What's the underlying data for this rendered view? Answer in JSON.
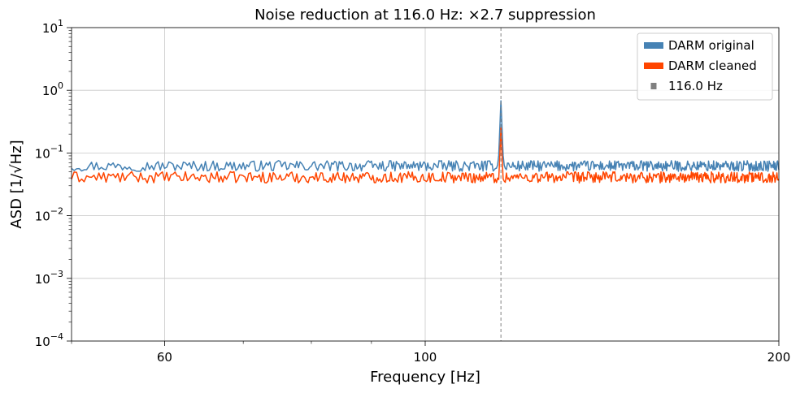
{
  "chart_data": {
    "type": "line",
    "title": "Noise reduction at 116.0 Hz: ×2.7 suppression",
    "xlabel": "Frequency [Hz]",
    "ylabel": "ASD [1/√Hz]",
    "xscale": "log",
    "yscale": "log",
    "xlim": [
      50,
      200
    ],
    "ylim": [
      0.0001,
      10
    ],
    "x_ticks": [
      {
        "value": 60,
        "label": "60"
      },
      {
        "value": 100,
        "label": "100"
      },
      {
        "value": 200,
        "label": "200"
      }
    ],
    "y_ticks": [
      {
        "value": 0.0001,
        "base": "10",
        "exp": "−4"
      },
      {
        "value": 0.001,
        "base": "10",
        "exp": "−3"
      },
      {
        "value": 0.01,
        "base": "10",
        "exp": "−2"
      },
      {
        "value": 0.1,
        "base": "10",
        "exp": "−1"
      },
      {
        "value": 1,
        "base": "10",
        "exp": "0"
      },
      {
        "value": 10,
        "base": "10",
        "exp": "1"
      }
    ],
    "grid": true,
    "legend_position": "top-right",
    "legend": [
      "DARM original",
      "DARM cleaned",
      "116.0 Hz"
    ],
    "series": [
      {
        "name": "DARM original",
        "color": "#4682b4",
        "baseline": 0.062,
        "jitter": 0.085,
        "peak": 0.68
      },
      {
        "name": "DARM cleaned",
        "color": "#ff4500",
        "baseline": 0.041,
        "jitter": 0.09,
        "peak": 0.25
      }
    ],
    "marker_line": {
      "x": 116.0,
      "label": "116.0 Hz",
      "color": "#808080"
    },
    "freq_step": 0.25
  }
}
